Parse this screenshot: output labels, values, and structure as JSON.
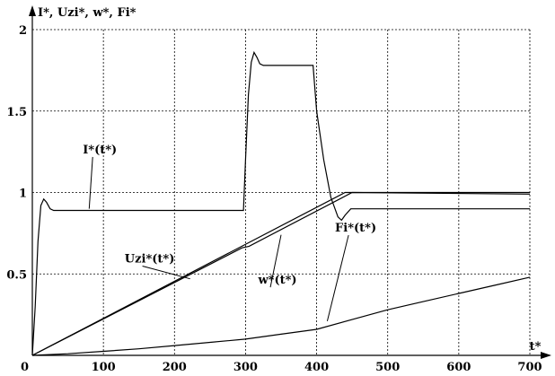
{
  "chart_data": {
    "type": "line",
    "ylabel": "I*, Uzi*, w*, Fi*",
    "xlabel": "t*",
    "xlim": [
      0,
      700
    ],
    "ylim": [
      0,
      2
    ],
    "xticks": [
      0,
      100,
      200,
      300,
      400,
      500,
      600,
      700
    ],
    "yticks": [
      0,
      0.5,
      1,
      1.5,
      2
    ],
    "grid": true,
    "series": [
      {
        "name": "I*(t*)",
        "points": [
          [
            0,
            0
          ],
          [
            4,
            0.3
          ],
          [
            8,
            0.7
          ],
          [
            12,
            0.92
          ],
          [
            16,
            0.96
          ],
          [
            20,
            0.94
          ],
          [
            25,
            0.9
          ],
          [
            30,
            0.89
          ],
          [
            290,
            0.89
          ],
          [
            297,
            0.89
          ],
          [
            300,
            1.2
          ],
          [
            304,
            1.6
          ],
          [
            308,
            1.8
          ],
          [
            312,
            1.86
          ],
          [
            316,
            1.83
          ],
          [
            320,
            1.79
          ],
          [
            325,
            1.78
          ],
          [
            380,
            1.78
          ],
          [
            395,
            1.78
          ],
          [
            400,
            1.5
          ],
          [
            410,
            1.2
          ],
          [
            420,
            0.97
          ],
          [
            430,
            0.85
          ],
          [
            435,
            0.83
          ],
          [
            440,
            0.86
          ],
          [
            448,
            0.9
          ],
          [
            455,
            0.9
          ],
          [
            700,
            0.9
          ]
        ]
      },
      {
        "name": "Uzi*(t*)",
        "points": [
          [
            0,
            0
          ],
          [
            440,
            1
          ],
          [
            700,
            1
          ]
        ]
      },
      {
        "name": "w*(t*)",
        "points": [
          [
            0,
            0
          ],
          [
            295,
            0.66
          ],
          [
            305,
            0.67
          ],
          [
            450,
            1
          ],
          [
            700,
            0.99
          ]
        ]
      },
      {
        "name": "Fi*(t*)",
        "points": [
          [
            0,
            0
          ],
          [
            50,
            0.01
          ],
          [
            100,
            0.025
          ],
          [
            150,
            0.04
          ],
          [
            200,
            0.06
          ],
          [
            250,
            0.08
          ],
          [
            300,
            0.1
          ],
          [
            350,
            0.13
          ],
          [
            400,
            0.16
          ],
          [
            450,
            0.22
          ],
          [
            500,
            0.28
          ],
          [
            550,
            0.33
          ],
          [
            600,
            0.38
          ],
          [
            650,
            0.43
          ],
          [
            700,
            0.48
          ]
        ]
      }
    ],
    "annotations": [
      {
        "text": "I*(t*)",
        "at": [
          95,
          1.24
        ],
        "arrow_to": [
          80,
          0.9
        ]
      },
      {
        "text": "Uzi*(t*)",
        "at": [
          165,
          0.57
        ],
        "arrow_to": [
          222,
          0.47
        ]
      },
      {
        "text": "w*(t*)",
        "at": [
          345,
          0.44
        ],
        "arrow_to": [
          350,
          0.74
        ]
      },
      {
        "text": "Fi*(t*)",
        "at": [
          455,
          0.76
        ],
        "arrow_to": [
          415,
          0.21
        ]
      }
    ]
  }
}
